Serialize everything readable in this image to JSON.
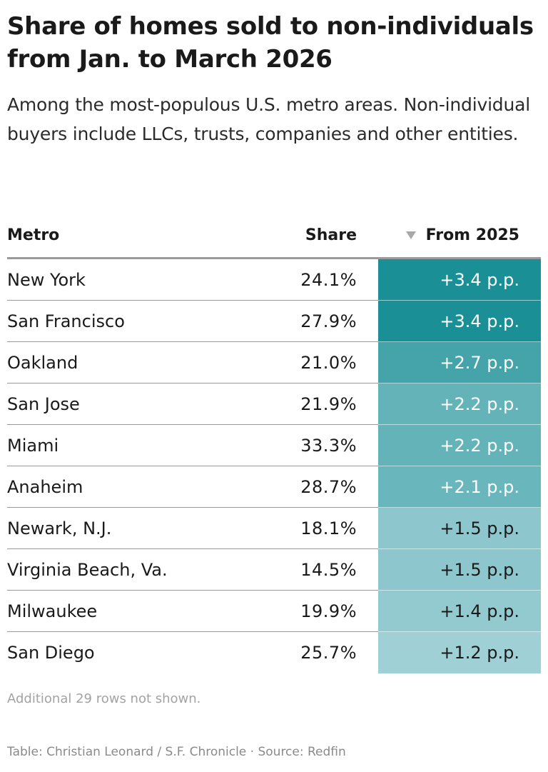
{
  "title": "Share of homes sold to non-individuals from Jan. to March 2026",
  "subtitle": "Among the most-populous U.S. metro areas. Non-individual buyers include LLCs, trusts, companies and other entities.",
  "chart_data": {
    "type": "table",
    "columns": [
      "Metro",
      "Share",
      "From 2025"
    ],
    "sort_column": "From 2025",
    "sort_direction": "descending",
    "rows": [
      {
        "metro": "New York",
        "share": "24.1%",
        "change": "+3.4 p.p.",
        "change_value": 3.4
      },
      {
        "metro": "San Francisco",
        "share": "27.9%",
        "change": "+3.4 p.p.",
        "change_value": 3.4
      },
      {
        "metro": "Oakland",
        "share": "21.0%",
        "change": "+2.7 p.p.",
        "change_value": 2.7
      },
      {
        "metro": "San Jose",
        "share": "21.9%",
        "change": "+2.2 p.p.",
        "change_value": 2.2
      },
      {
        "metro": "Miami",
        "share": "33.3%",
        "change": "+2.2 p.p.",
        "change_value": 2.2
      },
      {
        "metro": "Anaheim",
        "share": "28.7%",
        "change": "+2.1 p.p.",
        "change_value": 2.1
      },
      {
        "metro": "Newark, N.J.",
        "share": "18.1%",
        "change": "+1.5 p.p.",
        "change_value": 1.5
      },
      {
        "metro": "Virginia Beach, Va.",
        "share": "14.5%",
        "change": "+1.5 p.p.",
        "change_value": 1.5
      },
      {
        "metro": "Milwaukee",
        "share": "19.9%",
        "change": "+1.4 p.p.",
        "change_value": 1.4
      },
      {
        "metro": "San Diego",
        "share": "25.7%",
        "change": "+1.2 p.p.",
        "change_value": 1.2
      }
    ],
    "color_scale": [
      "#9fd0d6",
      "#1a9096"
    ]
  },
  "note": "Additional 29 rows not shown.",
  "footer": "Table: Christian Leonard / S.F. Chronicle · Source: Redfin",
  "icons": {
    "sort": "sort-descending-icon"
  }
}
